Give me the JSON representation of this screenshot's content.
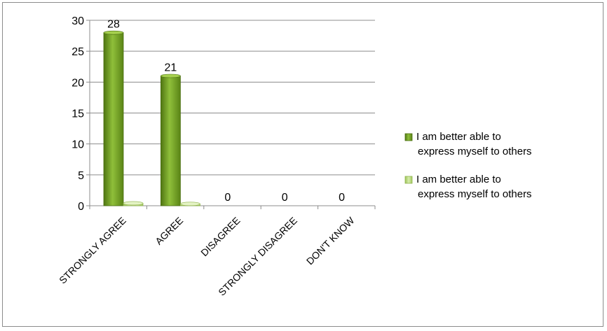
{
  "chart_data": {
    "type": "bar",
    "title": "",
    "xlabel": "",
    "ylabel": "",
    "categories": [
      "STRONGLY AGREE",
      "AGREE",
      "DISAGREE",
      "STRONGLY DISAGREE",
      "DON'T KNOW"
    ],
    "series": [
      {
        "name": "I am better able to express myself to others",
        "color": "#6e9a1e",
        "values": [
          28,
          21,
          0,
          0,
          0
        ],
        "data_labels": [
          "28",
          "21",
          "0",
          "0",
          "0"
        ]
      },
      {
        "name": "I am better able to express myself to others",
        "color": "#b6d86e",
        "values": [
          0.4,
          0.3,
          0,
          0,
          0
        ]
      }
    ],
    "ylim": [
      0,
      30
    ],
    "yticks": [
      0,
      5,
      10,
      15,
      20,
      25,
      30
    ],
    "grid": true,
    "legend": "right",
    "legend_lines": [
      [
        "I am better able to",
        "express myself to others"
      ],
      [
        "I am better able to",
        "express myself to others"
      ]
    ]
  }
}
